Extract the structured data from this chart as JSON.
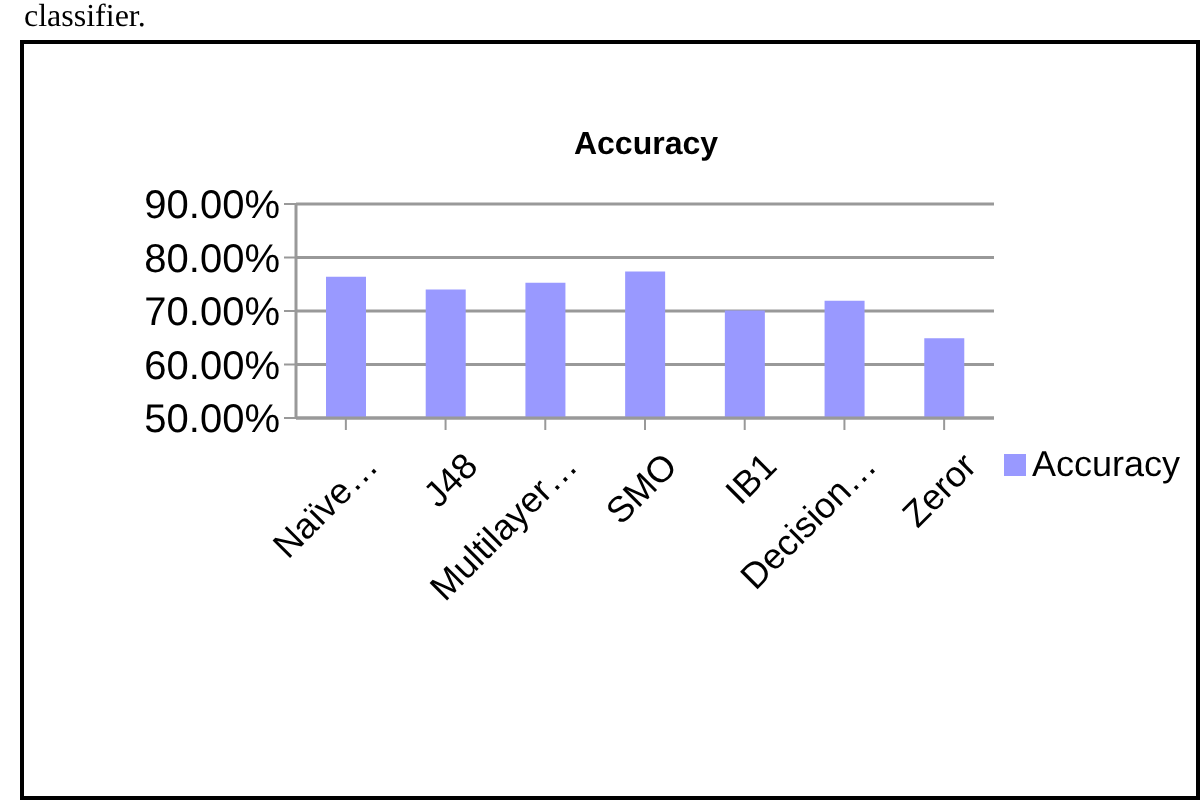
{
  "chart_data": {
    "type": "bar",
    "title": "Accuracy",
    "annotations": [
      "classifier."
    ],
    "categories": [
      "Naïve…",
      "J48",
      "Multilayer…",
      "SMO",
      "IB1",
      "Decision…",
      "Zeror"
    ],
    "series": [
      {
        "name": "Accuracy",
        "color": "#9999ff",
        "values": [
          76.4,
          74.0,
          75.3,
          77.4,
          70.1,
          71.9,
          64.9
        ]
      }
    ],
    "ylim": [
      50,
      90
    ],
    "yticks": [
      {
        "value": 50,
        "label": "50.00%"
      },
      {
        "value": 60,
        "label": "60.00%"
      },
      {
        "value": 70,
        "label": "70.00%"
      },
      {
        "value": 80,
        "label": "80.00%"
      },
      {
        "value": 90,
        "label": "90.00%"
      }
    ],
    "grid": "y",
    "legend": "right"
  }
}
